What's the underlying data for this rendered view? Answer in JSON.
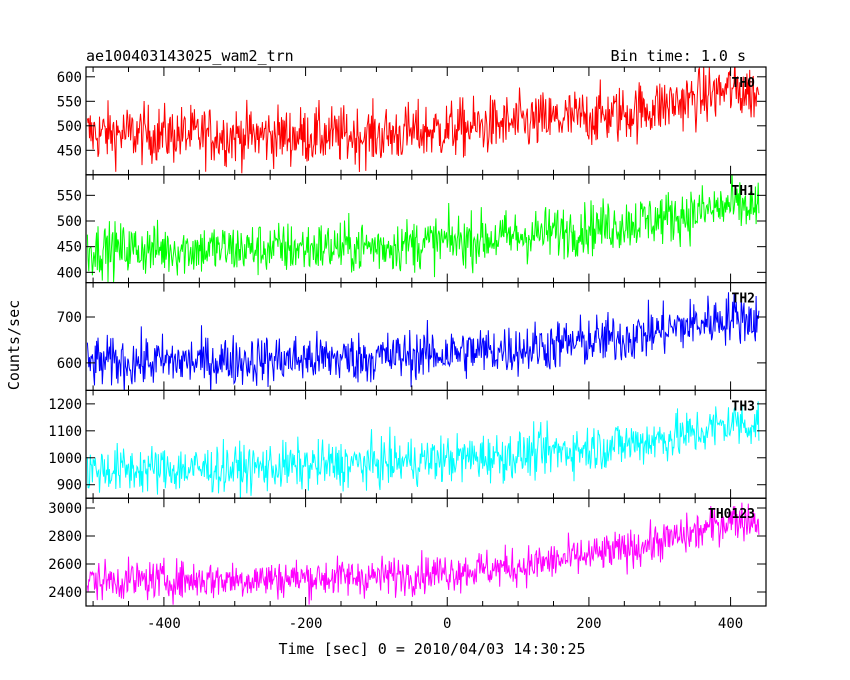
{
  "chart_data": {
    "type": "line",
    "title_left": "ae100403143025_wam2_trn",
    "title_right": "Bin time: 1.0 s",
    "xlabel": "Time [sec] 0 = 2010/04/03 14:30:25",
    "ylabel": "Counts/sec",
    "xlim": [
      -510,
      450
    ],
    "xticks": [
      -400,
      -200,
      0,
      200,
      400
    ],
    "x_start": -508,
    "x_end": 440,
    "panels": [
      {
        "name": "TH0",
        "color": "#ff0000",
        "ylim": [
          400,
          620
        ],
        "yticks": [
          450,
          500,
          550,
          600
        ],
        "trend": [
          [
            -508,
            485
          ],
          [
            -300,
            480
          ],
          [
            -100,
            480
          ],
          [
            100,
            505
          ],
          [
            250,
            525
          ],
          [
            350,
            555
          ],
          [
            400,
            575
          ],
          [
            440,
            565
          ]
        ],
        "noise": 30
      },
      {
        "name": "TH1",
        "color": "#00ff00",
        "ylim": [
          380,
          590
        ],
        "yticks": [
          400,
          450,
          500,
          550
        ],
        "trend": [
          [
            -508,
            445
          ],
          [
            -300,
            445
          ],
          [
            -100,
            450
          ],
          [
            100,
            470
          ],
          [
            250,
            495
          ],
          [
            350,
            515
          ],
          [
            400,
            530
          ],
          [
            440,
            525
          ]
        ],
        "noise": 26
      },
      {
        "name": "TH2",
        "color": "#0000ff",
        "ylim": [
          540,
          775
        ],
        "yticks": [
          600,
          700
        ],
        "trend": [
          [
            -508,
            600
          ],
          [
            -300,
            605
          ],
          [
            -100,
            612
          ],
          [
            100,
            630
          ],
          [
            250,
            655
          ],
          [
            350,
            685
          ],
          [
            400,
            700
          ],
          [
            440,
            695
          ]
        ],
        "noise": 28
      },
      {
        "name": "TH3",
        "color": "#00ffff",
        "ylim": [
          850,
          1250
        ],
        "yticks": [
          900,
          1000,
          1100,
          1200
        ],
        "trend": [
          [
            -508,
            955
          ],
          [
            -300,
            960
          ],
          [
            -100,
            980
          ],
          [
            100,
            1010
          ],
          [
            250,
            1050
          ],
          [
            350,
            1090
          ],
          [
            400,
            1130
          ],
          [
            440,
            1125
          ]
        ],
        "noise": 45
      },
      {
        "name": "TH0123",
        "color": "#ff00ff",
        "ylim": [
          2300,
          3070
        ],
        "yticks": [
          2400,
          2600,
          2800,
          3000
        ],
        "trend": [
          [
            -508,
            2480
          ],
          [
            -300,
            2490
          ],
          [
            -100,
            2510
          ],
          [
            100,
            2580
          ],
          [
            250,
            2700
          ],
          [
            350,
            2820
          ],
          [
            400,
            2920
          ],
          [
            440,
            2910
          ]
        ],
        "noise": 70
      }
    ]
  }
}
